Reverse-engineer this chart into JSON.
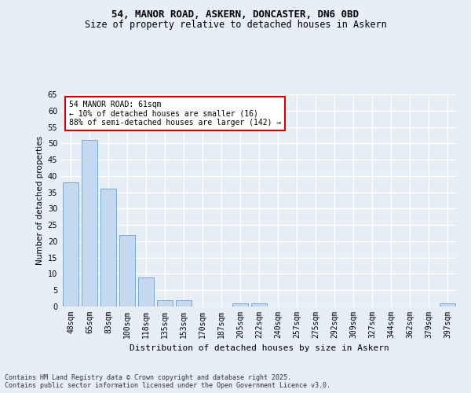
{
  "title1": "54, MANOR ROAD, ASKERN, DONCASTER, DN6 0BD",
  "title2": "Size of property relative to detached houses in Askern",
  "xlabel": "Distribution of detached houses by size in Askern",
  "ylabel": "Number of detached properties",
  "categories": [
    "48sqm",
    "65sqm",
    "83sqm",
    "100sqm",
    "118sqm",
    "135sqm",
    "153sqm",
    "170sqm",
    "187sqm",
    "205sqm",
    "222sqm",
    "240sqm",
    "257sqm",
    "275sqm",
    "292sqm",
    "309sqm",
    "327sqm",
    "344sqm",
    "362sqm",
    "379sqm",
    "397sqm"
  ],
  "values": [
    38,
    51,
    36,
    22,
    9,
    2,
    2,
    0,
    0,
    1,
    1,
    0,
    0,
    0,
    0,
    0,
    0,
    0,
    0,
    0,
    1
  ],
  "bar_color": "#c5d8ed",
  "bar_edge_color": "#5b8db8",
  "ylim": [
    0,
    65
  ],
  "yticks": [
    0,
    5,
    10,
    15,
    20,
    25,
    30,
    35,
    40,
    45,
    50,
    55,
    60,
    65
  ],
  "annotation_box_text": "54 MANOR ROAD: 61sqm\n← 10% of detached houses are smaller (16)\n88% of semi-detached houses are larger (142) →",
  "annotation_box_color": "#ffffff",
  "annotation_box_edge_color": "#cc0000",
  "footer_text": "Contains HM Land Registry data © Crown copyright and database right 2025.\nContains public sector information licensed under the Open Government Licence v3.0.",
  "background_color": "#e8eef5",
  "plot_background_color": "#e8eef5",
  "grid_color": "#ffffff",
  "title1_fontsize": 9,
  "title2_fontsize": 8.5,
  "xlabel_fontsize": 8,
  "ylabel_fontsize": 7.5,
  "tick_fontsize": 7,
  "annotation_fontsize": 7,
  "footer_fontsize": 6
}
